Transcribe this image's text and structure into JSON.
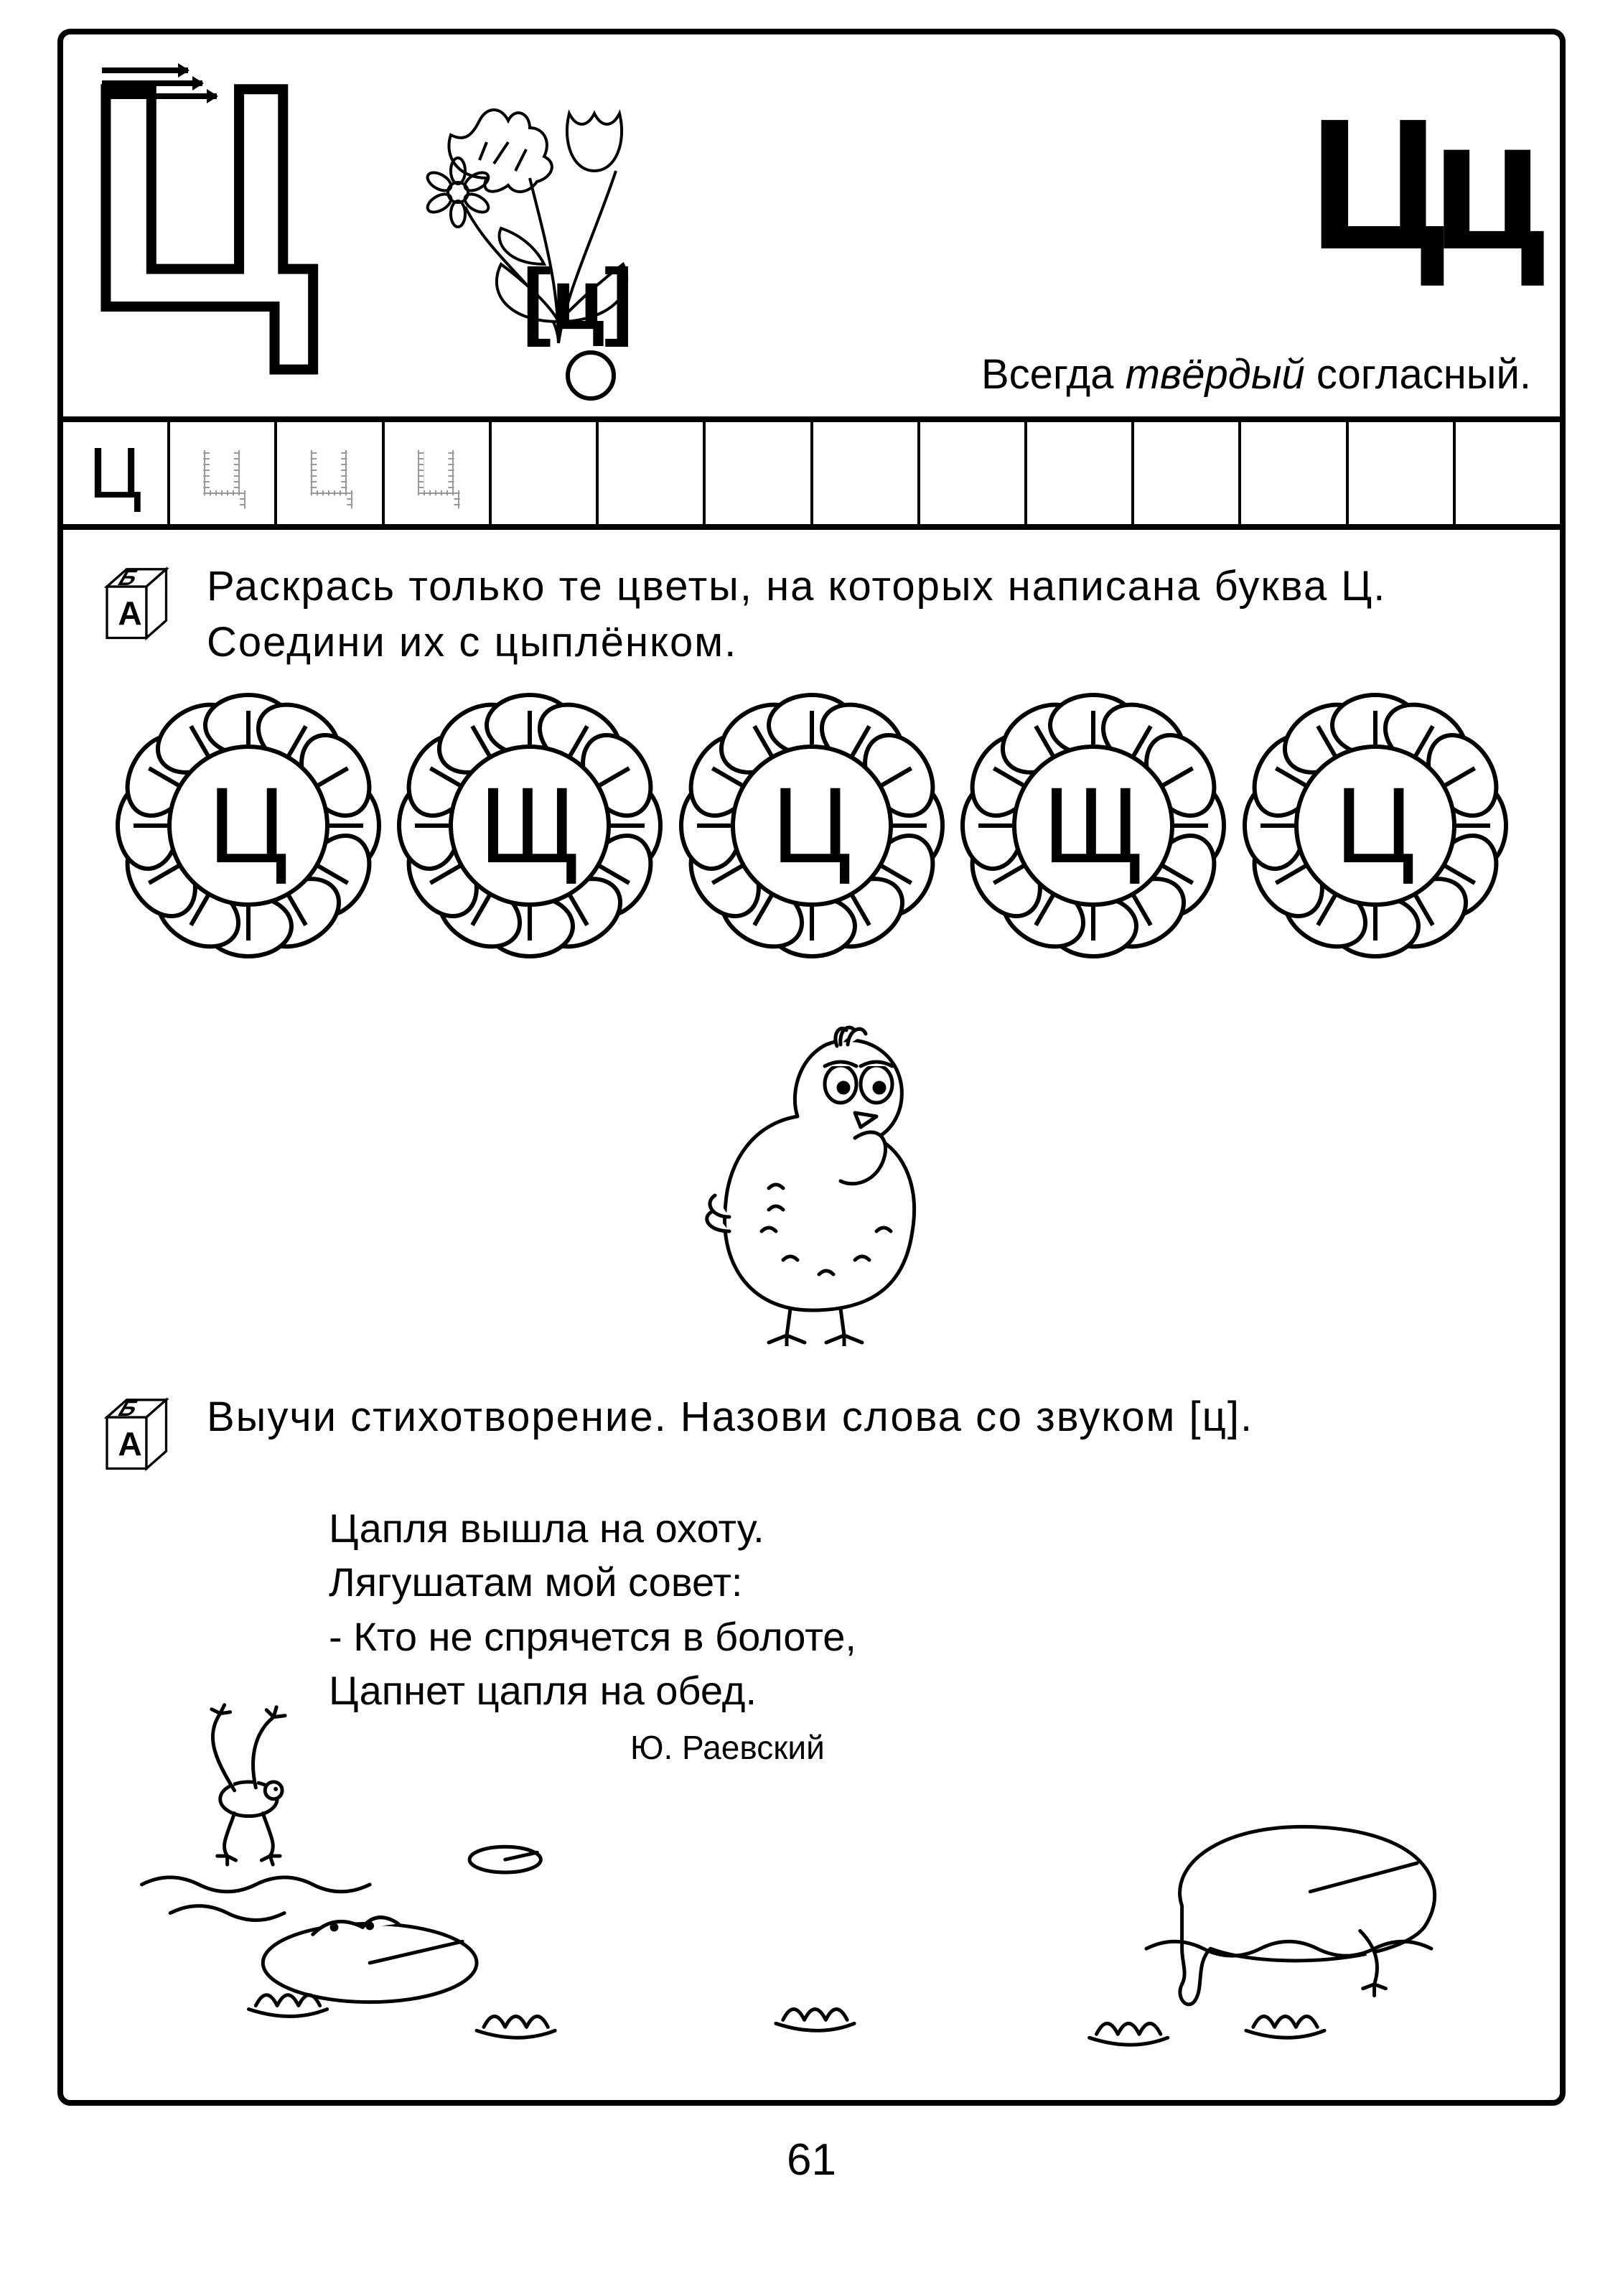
{
  "page_number": "61",
  "colors": {
    "ink": "#000000",
    "paper": "#ffffff"
  },
  "header": {
    "big_letter": "Ц",
    "letter_pair": "Цц",
    "phonetic": "[ц]",
    "description_pre": "Всегда ",
    "description_em": "твёрдый",
    "description_post": " согласный.",
    "image_label": "flowers-icon"
  },
  "writing_row": {
    "cells": [
      "Ц",
      "Ц",
      "Ц",
      "Ц",
      "",
      "",
      "",
      "",
      "",
      "",
      "",
      "",
      "",
      ""
    ],
    "solid_index": 0,
    "dotted_indices": [
      1,
      2,
      3
    ]
  },
  "task1": {
    "text": "Раскрась только те цветы, на которых написана буква Ц. Соедини их с цыплёнком.",
    "flower_letters": [
      "Ц",
      "Щ",
      "Ц",
      "Щ",
      "Ц"
    ],
    "chick_label": "chick-icon"
  },
  "task2": {
    "text": "Выучи стихотворение. Назови слова со звуком [ц].",
    "poem_lines": [
      "Цапля вышла на охоту.",
      "Лягушатам мой совет:",
      "- Кто не спрячется в болоте,",
      "Цапнет цапля на обед."
    ],
    "author": "Ю. Раевский",
    "pond_label": "pond-frogs-icon"
  }
}
